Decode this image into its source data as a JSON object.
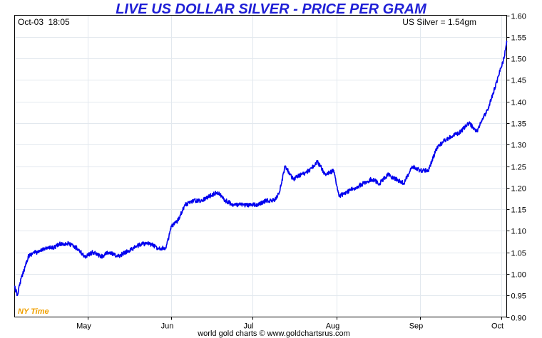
{
  "chart_data": {
    "type": "line",
    "title": "LIVE US DOLLAR SILVER - PRICE PER GRAM",
    "date_time": "Oct-03  18:05",
    "current_price_label": "US Silver = 1.54gm",
    "timezone_label": "NY Time",
    "footer": "world gold charts © www.goldchartsrus.com",
    "line_color": "#0000ee",
    "grid": true,
    "ylim": [
      0.9,
      1.6
    ],
    "y_ticks": [
      "0.90",
      "0.95",
      "1.00",
      "1.05",
      "1.10",
      "1.15",
      "1.20",
      "1.25",
      "1.30",
      "1.35",
      "1.40",
      "1.45",
      "1.50",
      "1.55",
      "1.60"
    ],
    "x_ticks": [
      "May",
      "Jun",
      "Jul",
      "Aug",
      "Sep",
      "Oct"
    ],
    "series": [
      {
        "x": [
          "Apr-04",
          "Apr-05",
          "Apr-06",
          "Apr-07",
          "Apr-08",
          "Apr-09",
          "Apr-11",
          "Apr-13",
          "Apr-15",
          "Apr-18",
          "Apr-21",
          "Apr-24",
          "Apr-27",
          "Apr-30",
          "May-03",
          "May-06",
          "May-09",
          "May-12",
          "May-15",
          "May-18",
          "May-21",
          "May-24",
          "May-27",
          "May-30",
          "Jun-01",
          "Jun-03",
          "Jun-06",
          "Jun-09",
          "Jun-12",
          "Jun-15",
          "Jun-18",
          "Jun-21",
          "Jun-24",
          "Jun-27",
          "Jun-30",
          "Jul-03",
          "Jul-06",
          "Jul-09",
          "Jul-11",
          "Jul-13",
          "Jul-16",
          "Jul-19",
          "Jul-22",
          "Jul-25",
          "Jul-28",
          "Jul-31",
          "Aug-02",
          "Aug-05",
          "Aug-08",
          "Aug-11",
          "Aug-14",
          "Aug-17",
          "Aug-20",
          "Aug-23",
          "Aug-26",
          "Aug-29",
          "Sep-01",
          "Sep-04",
          "Sep-07",
          "Sep-10",
          "Sep-13",
          "Sep-16",
          "Sep-19",
          "Sep-22",
          "Sep-24",
          "Sep-26",
          "Sep-28",
          "Sep-30",
          "Oct-01",
          "Oct-02",
          "Oct-03"
        ],
        "y": [
          0.97,
          0.95,
          0.98,
          1.0,
          1.02,
          1.04,
          1.05,
          1.05,
          1.06,
          1.06,
          1.07,
          1.07,
          1.06,
          1.04,
          1.05,
          1.04,
          1.05,
          1.04,
          1.05,
          1.06,
          1.07,
          1.07,
          1.06,
          1.06,
          1.11,
          1.12,
          1.16,
          1.17,
          1.17,
          1.18,
          1.19,
          1.17,
          1.16,
          1.16,
          1.16,
          1.16,
          1.17,
          1.17,
          1.19,
          1.25,
          1.22,
          1.23,
          1.24,
          1.26,
          1.23,
          1.24,
          1.18,
          1.19,
          1.2,
          1.21,
          1.22,
          1.21,
          1.23,
          1.22,
          1.21,
          1.25,
          1.24,
          1.24,
          1.29,
          1.31,
          1.32,
          1.33,
          1.35,
          1.33,
          1.36,
          1.38,
          1.42,
          1.46,
          1.48,
          1.5,
          1.54
        ]
      }
    ]
  }
}
